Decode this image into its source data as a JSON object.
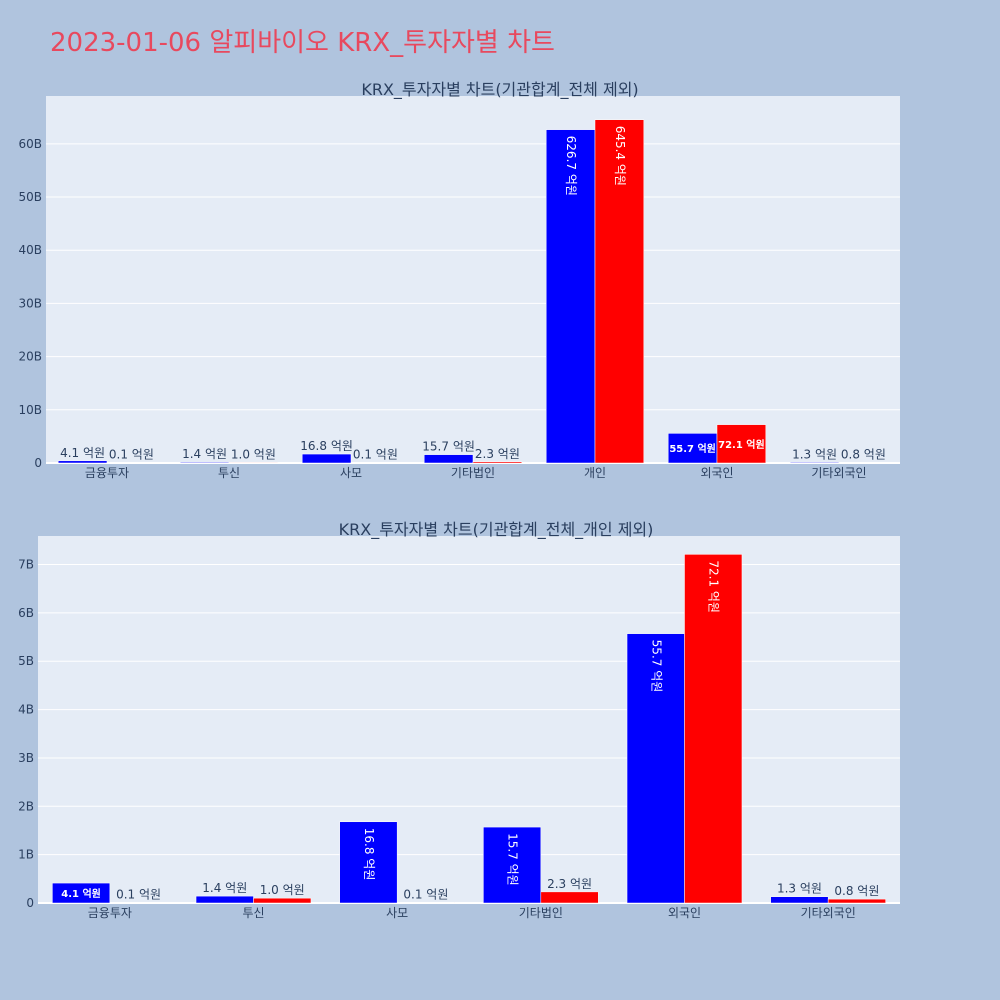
{
  "title": "2023-01-06 알피바이오 KRX_투자자별 차트",
  "colors": {
    "background": "#b0c4de",
    "plot_bg": "#e5ecf6",
    "buy": "#0000ff",
    "sell": "#ff0000",
    "title": "#e8495e"
  },
  "chart_data": [
    {
      "type": "bar",
      "title": "KRX_투자자별 차트(기관합계_전체 제외)",
      "categories": [
        "금융투자",
        "투신",
        "사모",
        "기타법인",
        "개인",
        "외국인",
        "기타외국인"
      ],
      "series": [
        {
          "values": [
            412000000,
            142000000,
            1680000000,
            1570000000,
            62670000000,
            5570000000,
            130000000
          ],
          "labels": [
            "4.1 억원",
            "1.4 억원",
            "16.8 억원",
            "15.7 억원",
            "626.7 억원",
            "55.7 억원",
            "1.3 억원"
          ]
        },
        {
          "values": [
            10000000,
            100000000,
            10000000,
            230000000,
            64540000000,
            7210000000,
            80000000
          ],
          "labels": [
            "0.1 억원",
            "1.0 억원",
            "0.1 억원",
            "2.3 억원",
            "645.4 억원",
            "72.1 억원",
            "0.8 억원"
          ]
        }
      ],
      "ylim": [
        0,
        69000000000
      ],
      "yticks": [
        0,
        10000000000,
        20000000000,
        30000000000,
        40000000000,
        50000000000,
        60000000000
      ],
      "ytick_labels": [
        "0",
        "10B",
        "20B",
        "30B",
        "40B",
        "50B",
        "60B"
      ],
      "grid": true
    },
    {
      "type": "bar",
      "title": "KRX_투자자별 차트(기관합계_전체_개인 제외)",
      "categories": [
        "금융투자",
        "투신",
        "사모",
        "기타법인",
        "외국인",
        "기타외국인"
      ],
      "series": [
        {
          "values": [
            412000000,
            142000000,
            1680000000,
            1570000000,
            5570000000,
            130000000
          ],
          "labels": [
            "4.1 억원",
            "1.4 억원",
            "16.8 억원",
            "15.7 억원",
            "55.7 억원",
            "1.3 억원"
          ]
        },
        {
          "values": [
            10000000,
            100000000,
            10000000,
            230000000,
            7210000000,
            80000000
          ],
          "labels": [
            "0.1 억원",
            "1.0 억원",
            "0.1 억원",
            "2.3 억원",
            "72.1 억원",
            "0.8 억원"
          ]
        }
      ],
      "ylim": [
        0,
        7590000000
      ],
      "yticks": [
        0,
        1000000000,
        2000000000,
        3000000000,
        4000000000,
        5000000000,
        6000000000,
        7000000000
      ],
      "ytick_labels": [
        "0",
        "1B",
        "2B",
        "3B",
        "4B",
        "5B",
        "6B",
        "7B"
      ],
      "grid": true
    }
  ]
}
